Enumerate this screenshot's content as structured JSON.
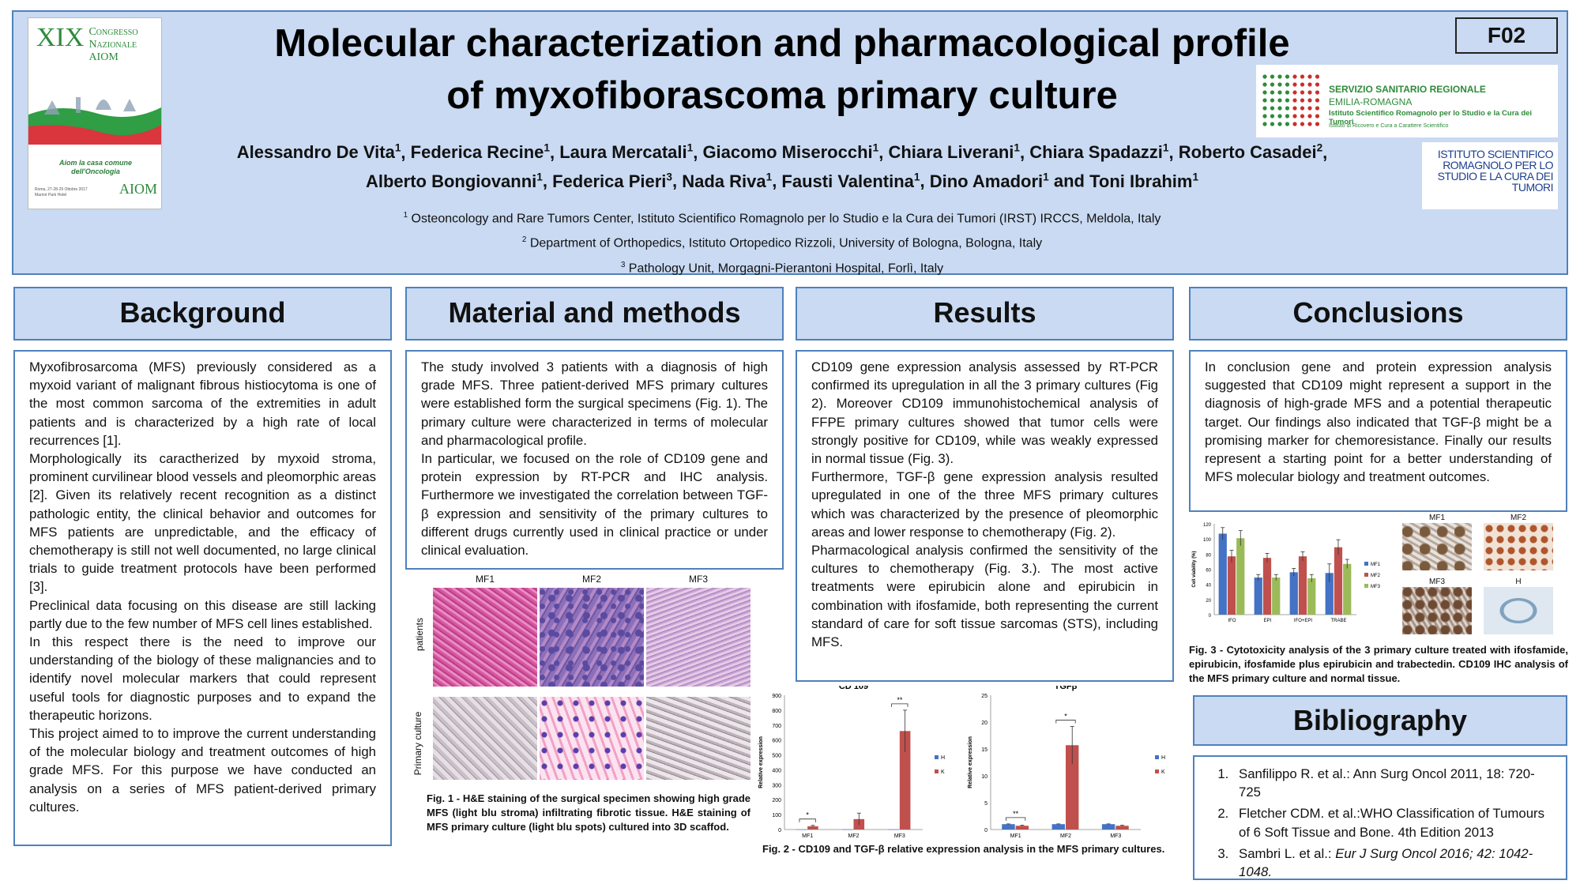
{
  "header": {
    "badge": "F02",
    "title_line1": "Molecular characterization and pharmacological profile",
    "title_line2": "of myxofiborascoma primary culture",
    "authors": [
      {
        "name": "Alessandro De Vita",
        "aff": "1"
      },
      {
        "name": "Federica Recine",
        "aff": "1"
      },
      {
        "name": "Laura Mercatali",
        "aff": "1"
      },
      {
        "name": "Giacomo Miserocchi",
        "aff": "1"
      },
      {
        "name": "Chiara Liverani",
        "aff": "1"
      },
      {
        "name": "Chiara Spadazzi",
        "aff": "1"
      },
      {
        "name": "Roberto Casadei",
        "aff": "2"
      },
      {
        "name": "Alberto Bongiovanni",
        "aff": "1"
      },
      {
        "name": "Federica Pieri",
        "aff": "3"
      },
      {
        "name": "Nada Riva",
        "aff": "1"
      },
      {
        "name": "Fausti Valentina",
        "aff": "1"
      },
      {
        "name": "Dino Amadori",
        "aff": "1"
      },
      {
        "name": "Toni Ibrahim",
        "aff": "1"
      }
    ],
    "and_word": "and",
    "affiliations": [
      {
        "num": "1",
        "text": "Osteoncology and Rare Tumors Center, Istituto Scientifico Romagnolo per lo Studio e la Cura dei Tumori (IRST) IRCCS, Meldola, Italy"
      },
      {
        "num": "2",
        "text": "Department of Orthopedics, Istituto Ortopedico Rizzoli, University of Bologna, Bologna, Italy"
      },
      {
        "num": "3",
        "text": "Pathology Unit, Morgagni-Pierantoni Hospital, Forlì, Italy"
      }
    ]
  },
  "logos": {
    "aiom": {
      "roman": "XIX",
      "line1": "Congresso",
      "line2": "Nazionale",
      "line3": "AIOM",
      "slogan1": "Aiom la casa comune",
      "slogan2": "dell'Oncologia",
      "place": "Roma, 27-28-29 Ottobre 2017",
      "venue": "Marriot Park Hotel",
      "mark": "AIOM"
    },
    "ssr": {
      "line1": "SERVIZIO SANITARIO REGIONALE",
      "line2": "EMILIA-ROMAGNA",
      "line3": "Istituto Scientifico Romagnolo per lo Studio e la Cura dei Tumori",
      "line4": "Istituto di Ricovero e Cura a Carattere Scientifico"
    },
    "irst": {
      "text": "Istituto Scientifico Romagnolo per lo studio e la cura dei tumori"
    }
  },
  "sections": {
    "background": {
      "heading": "Background",
      "paragraphs": [
        "Myxofibrosarcoma (MFS) previously considered as a myxoid variant of malignant fibrous histiocytoma is one of the most common sarcoma of the extremities in adult patients and is characterized by a high rate of local recurrences [1].",
        "Morphologically its caractherized by myxoid stroma, prominent curvilinear blood vessels and pleomorphic areas [2]. Given its relatively recent recognition as a distinct pathologic entity, the clinical behavior and outcomes for MFS patients are unpredictable, and the efficacy of chemotherapy is still not well documented, no large clinical trials to guide treatment protocols have been performed [3].",
        "Preclinical data focusing on this disease are still lacking partly due to the few number of MFS cell lines established.",
        "In this respect there is the need to improve our understanding of the biology of these malignancies and to identify novel molecular markers that could represent useful tools for diagnostic purposes and to expand the therapeutic horizons.",
        "This project aimed to to improve the current understanding of the molecular biology and treatment outcomes of high grade MFS. For this purpose we have conducted an analysis on a series of MFS patient-derived primary cultures."
      ]
    },
    "methods": {
      "heading": "Material and methods",
      "paragraphs": [
        "The study involved 3 patients with a diagnosis of high grade MFS. Three patient-derived MFS primary cultures were established form the surgical specimens (Fig. 1). The primary culture were characterized in terms of molecular and pharmacological profile.",
        "In particular, we focused on the role of CD109 gene and protein expression by RT-PCR and IHC analysis. Furthermore we investigated the correlation between TGF-β expression and sensitivity of the primary cultures to different drugs currently used in clinical practice or under clinical evaluation."
      ]
    },
    "results": {
      "heading": "Results",
      "paragraphs": [
        "CD109 gene expression analysis assessed by RT-PCR confirmed its upregulation in all the 3 primary cultures (Fig 2). Moreover CD109 immunohistochemical analysis of FFPE primary cultures showed that tumor cells were strongly positive for CD109, while was weakly expressed in normal tissue (Fig. 3).",
        "Furthermore, TGF-β gene expression analysis resulted upregulated in one of the three MFS primary cultures which was characterized by the presence of pleomorphic areas and lower response to chemotherapy (Fig. 2).",
        "Pharmacological analysis confirmed the sensitivity of the cultures to chemotherapy (Fig. 3.). The most active treatments were epirubicin alone and epirubicin in combination with ifosfamide, both representing the current standard of care for soft tissue sarcomas (STS), including MFS."
      ]
    },
    "conclusions": {
      "heading": "Conclusions",
      "paragraphs": [
        "In conclusion gene and protein expression analysis suggested that CD109 might represent a support in the diagnosis of high-grade MFS and a potential therapeutic target. Our findings also indicated that TGF-β might be a promising marker for chemoresistance. Finally our results represent a starting point for a better understanding of MFS molecular biology and treatment outcomes."
      ]
    },
    "bibliography": {
      "heading": "Bibliography",
      "items": [
        {
          "plain": "Sanfilippo R. et al.: Ann Surg Oncol 2011, 18: 720-725",
          "italic": ""
        },
        {
          "plain": "Fletcher CDM. et al.:WHO Classification of Tumours of 6 Soft Tissue and Bone. 4th Edition 2013",
          "italic": ""
        },
        {
          "plain": "Sambri L. et al.: ",
          "italic": "Eur J Surg Oncol 2016; 42: 1042-1048."
        }
      ]
    }
  },
  "fig1": {
    "columns": [
      "MF1",
      "MF2",
      "MF3"
    ],
    "rows": [
      "patients",
      "Primary culture"
    ],
    "caption": "Fig. 1 - H&E staining of the surgical specimen showing high grade MFS (light blu stroma) infiltrating fibrotic tissue. H&E staining of MFS primary culture (light blu spots) cultured into 3D scaffod."
  },
  "fig2_caption": "Fig. 2 - CD109 and TGF-β relative expression analysis in the MFS primary cultures.",
  "fig3": {
    "ihc_labels": [
      "MF1",
      "MF2",
      "MF3",
      "H"
    ],
    "caption": "Fig. 3 - Cytotoxicity analysis of the 3 primary culture treated with ifosfamide, epirubicin, ifosfamide plus epirubicin and trabectedin. CD109 IHC analysis of the MFS primary culture and normal tissue."
  },
  "colors": {
    "header_bg": "#c9daf2",
    "border": "#4f81bd",
    "series_h": "#4472c4",
    "series_k": "#c0504d",
    "series_mf3": "#9bbb59"
  },
  "chart_data": [
    {
      "id": "cd109",
      "type": "bar",
      "title": "CD 109",
      "ylabel": "Relative expression",
      "categories": [
        "MF1",
        "MF2",
        "MF3"
      ],
      "ylim": [
        0,
        900
      ],
      "yticks": [
        0,
        100,
        200,
        300,
        400,
        500,
        600,
        700,
        800,
        900
      ],
      "series": [
        {
          "name": "H",
          "values": [
            1,
            1,
            1
          ],
          "errors": [
            0,
            0,
            0
          ]
        },
        {
          "name": "K",
          "values": [
            22,
            70,
            660
          ],
          "errors": [
            6,
            40,
            140
          ]
        }
      ],
      "significance": [
        "*",
        "",
        "**"
      ],
      "legend": "right"
    },
    {
      "id": "tgfb",
      "type": "bar",
      "title": "TGFβ",
      "ylabel": "Relative expression",
      "categories": [
        "MF1",
        "MF2",
        "MF3"
      ],
      "ylim": [
        0,
        25
      ],
      "yticks": [
        0,
        5,
        10,
        15,
        20,
        25
      ],
      "series": [
        {
          "name": "H",
          "values": [
            1,
            1,
            1
          ],
          "errors": [
            0.05,
            0.05,
            0.05
          ]
        },
        {
          "name": "K",
          "values": [
            0.7,
            15.7,
            0.7
          ],
          "errors": [
            0.1,
            3.5,
            0.1
          ]
        }
      ],
      "significance": [
        "**",
        "*",
        ""
      ],
      "legend": "right"
    },
    {
      "id": "cytotox",
      "type": "bar",
      "title": "",
      "ylabel": "Cell viability (%)",
      "categories": [
        "IFO",
        "EPI",
        "IFO+EPI",
        "TRABE"
      ],
      "ylim": [
        0,
        120
      ],
      "yticks": [
        0,
        20,
        40,
        60,
        80,
        100,
        120
      ],
      "series": [
        {
          "name": "MF1",
          "values": [
            107,
            49,
            56,
            55
          ],
          "errors": [
            8,
            4,
            5,
            12
          ]
        },
        {
          "name": "MF2",
          "values": [
            77,
            75,
            77,
            89
          ],
          "errors": [
            8,
            6,
            6,
            10
          ]
        },
        {
          "name": "MF3",
          "values": [
            101,
            49,
            48,
            67
          ],
          "errors": [
            10,
            4,
            5,
            6
          ]
        }
      ],
      "legend": "right"
    }
  ]
}
